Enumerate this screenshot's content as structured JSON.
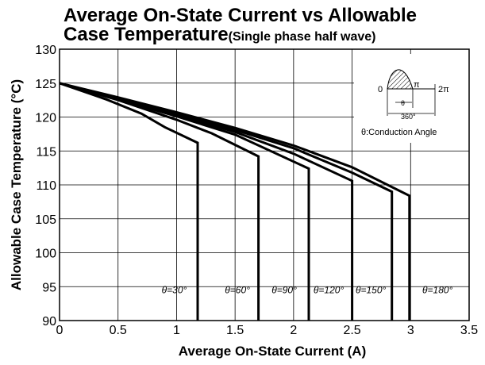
{
  "chart_data": {
    "type": "line",
    "title_line1": "Average On-State Current vs Allowable",
    "title_line2_main": "Case Temperature",
    "title_line2_sub": "(Single phase half wave)",
    "xlabel": "Average On-State Current (A)",
    "ylabel": "Allowable Case Temperature (°C)",
    "xlim": [
      0,
      3.5
    ],
    "ylim": [
      90,
      130
    ],
    "x_ticks": [
      "0",
      "0.5",
      "1",
      "1.5",
      "2",
      "2.5",
      "3",
      "3.5"
    ],
    "y_ticks": [
      "90",
      "95",
      "100",
      "105",
      "110",
      "115",
      "120",
      "125",
      "130"
    ],
    "grid": true,
    "series": [
      {
        "name": "θ=30°",
        "x": [
          0,
          0.4,
          0.7,
          0.9,
          1.18,
          1.18
        ],
        "y": [
          125,
          122.6,
          120.5,
          118.5,
          116.2,
          90
        ]
      },
      {
        "name": "θ=60°",
        "x": [
          0,
          0.5,
          1.0,
          1.3,
          1.7,
          1.7
        ],
        "y": [
          125,
          122.5,
          119.6,
          117.6,
          114.2,
          90
        ]
      },
      {
        "name": "θ=90°",
        "x": [
          0,
          0.5,
          1.0,
          1.5,
          2.13,
          2.13
        ],
        "y": [
          125,
          122.6,
          120.1,
          117.4,
          112.4,
          90
        ]
      },
      {
        "name": "θ=120°",
        "x": [
          0,
          0.5,
          1.0,
          1.5,
          2.0,
          2.5,
          2.5
        ],
        "y": [
          125,
          122.7,
          120.3,
          117.8,
          114.6,
          110.6,
          90
        ]
      },
      {
        "name": "θ=150°",
        "x": [
          0,
          0.5,
          1.0,
          1.5,
          2.0,
          2.5,
          2.84,
          2.84
        ],
        "y": [
          125,
          122.8,
          120.5,
          118.1,
          115.4,
          111.8,
          109.0,
          90
        ]
      },
      {
        "name": "θ=180°",
        "x": [
          0,
          0.5,
          1.0,
          1.5,
          2.0,
          2.5,
          2.99,
          2.99
        ],
        "y": [
          125,
          122.9,
          120.7,
          118.4,
          115.8,
          112.6,
          108.4,
          90
        ]
      }
    ],
    "series_labels": [
      {
        "text": "θ=30°",
        "x": 0.98,
        "y": 94.5
      },
      {
        "text": "θ=60°",
        "x": 1.52,
        "y": 94.5
      },
      {
        "text": "θ=90°",
        "x": 1.92,
        "y": 94.5
      },
      {
        "text": "θ=120°",
        "x": 2.3,
        "y": 94.5
      },
      {
        "text": "θ=150°",
        "x": 2.66,
        "y": 94.5
      },
      {
        "text": "θ=180°",
        "x": 3.23,
        "y": 94.5
      }
    ],
    "inset": {
      "zero": "0",
      "pi": "π",
      "two_pi": "2π",
      "theta": "θ",
      "deg360": "360°",
      "caption": "θ:Conduction Angle"
    }
  },
  "colors": {
    "line": "#000000",
    "grid": "#000000",
    "background": "#ffffff"
  }
}
